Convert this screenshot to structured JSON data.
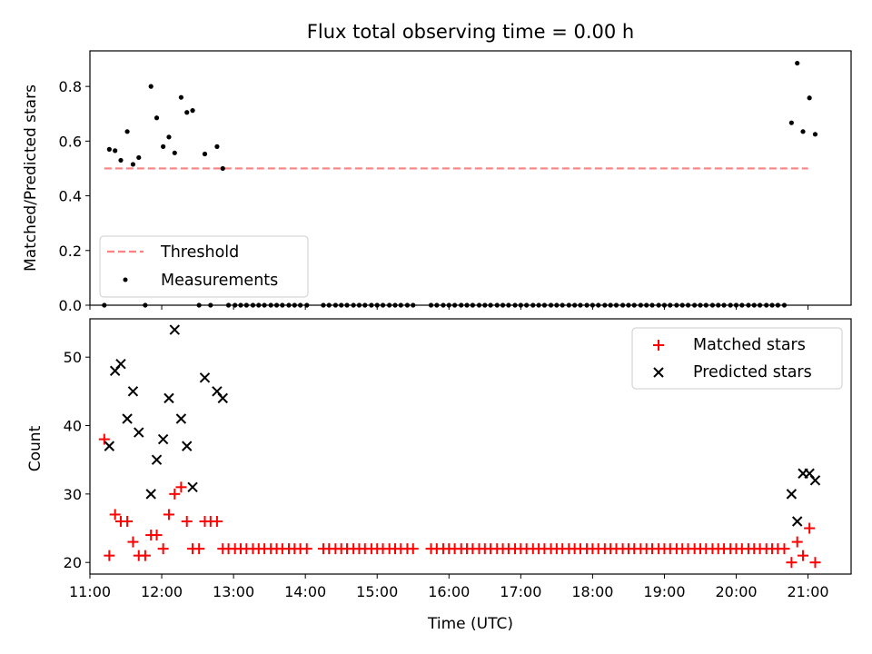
{
  "chart_data": [
    {
      "type": "scatter",
      "title": "Flux total observing time = 0.00 h",
      "xlabel": "",
      "ylabel": "Matched/Predicted stars",
      "xlim": [
        11.0,
        21.6
      ],
      "ylim": [
        0.0,
        0.93
      ],
      "yticks": [
        "0.0",
        "0.2",
        "0.4",
        "0.6",
        "0.8"
      ],
      "threshold": {
        "name": "Threshold",
        "value": 0.5,
        "x_range": [
          11.2,
          21.0
        ],
        "color": "#ff8080"
      },
      "legend": {
        "position": "lower-left",
        "entries": [
          "Threshold",
          "Measurements"
        ]
      },
      "series": [
        {
          "name": "Measurements",
          "color": "#000000",
          "points": [
            [
              11.2,
              0.0
            ],
            [
              11.27,
              0.57
            ],
            [
              11.35,
              0.565
            ],
            [
              11.43,
              0.53
            ],
            [
              11.52,
              0.635
            ],
            [
              11.6,
              0.515
            ],
            [
              11.68,
              0.54
            ],
            [
              11.77,
              0.0
            ],
            [
              11.85,
              0.8
            ],
            [
              11.93,
              0.685
            ],
            [
              12.02,
              0.58
            ],
            [
              12.1,
              0.615
            ],
            [
              12.18,
              0.557
            ],
            [
              12.27,
              0.76
            ],
            [
              12.35,
              0.705
            ],
            [
              12.43,
              0.712
            ],
            [
              12.52,
              0.0
            ],
            [
              12.6,
              0.553
            ],
            [
              12.68,
              0.0
            ],
            [
              12.77,
              0.58
            ],
            [
              12.85,
              0.5
            ],
            [
              12.93,
              0.0
            ],
            [
              13.02,
              0.0
            ],
            [
              13.1,
              0.0
            ],
            [
              13.18,
              0.0
            ],
            [
              13.27,
              0.0
            ],
            [
              13.35,
              0.0
            ],
            [
              13.43,
              0.0
            ],
            [
              13.52,
              0.0
            ],
            [
              13.6,
              0.0
            ],
            [
              13.68,
              0.0
            ],
            [
              13.77,
              0.0
            ],
            [
              13.85,
              0.0
            ],
            [
              13.93,
              0.0
            ],
            [
              14.02,
              0.0
            ],
            [
              14.25,
              0.0
            ],
            [
              14.33,
              0.0
            ],
            [
              14.42,
              0.0
            ],
            [
              14.5,
              0.0
            ],
            [
              14.58,
              0.0
            ],
            [
              14.67,
              0.0
            ],
            [
              14.75,
              0.0
            ],
            [
              14.83,
              0.0
            ],
            [
              14.92,
              0.0
            ],
            [
              15.0,
              0.0
            ],
            [
              15.08,
              0.0
            ],
            [
              15.17,
              0.0
            ],
            [
              15.25,
              0.0
            ],
            [
              15.33,
              0.0
            ],
            [
              15.42,
              0.0
            ],
            [
              15.5,
              0.0
            ],
            [
              15.75,
              0.0
            ],
            [
              15.83,
              0.0
            ],
            [
              15.92,
              0.0
            ],
            [
              16.0,
              0.0
            ],
            [
              16.08,
              0.0
            ],
            [
              16.17,
              0.0
            ],
            [
              16.25,
              0.0
            ],
            [
              16.33,
              0.0
            ],
            [
              16.42,
              0.0
            ],
            [
              16.5,
              0.0
            ],
            [
              16.58,
              0.0
            ],
            [
              16.67,
              0.0
            ],
            [
              16.75,
              0.0
            ],
            [
              16.83,
              0.0
            ],
            [
              16.92,
              0.0
            ],
            [
              17.0,
              0.0
            ],
            [
              17.08,
              0.0
            ],
            [
              17.17,
              0.0
            ],
            [
              17.25,
              0.0
            ],
            [
              17.33,
              0.0
            ],
            [
              17.42,
              0.0
            ],
            [
              17.5,
              0.0
            ],
            [
              17.58,
              0.0
            ],
            [
              17.67,
              0.0
            ],
            [
              17.75,
              0.0
            ],
            [
              17.83,
              0.0
            ],
            [
              17.92,
              0.0
            ],
            [
              18.0,
              0.0
            ],
            [
              18.08,
              0.0
            ],
            [
              18.17,
              0.0
            ],
            [
              18.25,
              0.0
            ],
            [
              18.33,
              0.0
            ],
            [
              18.42,
              0.0
            ],
            [
              18.5,
              0.0
            ],
            [
              18.58,
              0.0
            ],
            [
              18.67,
              0.0
            ],
            [
              18.75,
              0.0
            ],
            [
              18.83,
              0.0
            ],
            [
              18.92,
              0.0
            ],
            [
              19.0,
              0.0
            ],
            [
              19.08,
              0.0
            ],
            [
              19.17,
              0.0
            ],
            [
              19.25,
              0.0
            ],
            [
              19.33,
              0.0
            ],
            [
              19.42,
              0.0
            ],
            [
              19.5,
              0.0
            ],
            [
              19.58,
              0.0
            ],
            [
              19.67,
              0.0
            ],
            [
              19.75,
              0.0
            ],
            [
              19.83,
              0.0
            ],
            [
              19.92,
              0.0
            ],
            [
              20.0,
              0.0
            ],
            [
              20.08,
              0.0
            ],
            [
              20.17,
              0.0
            ],
            [
              20.25,
              0.0
            ],
            [
              20.33,
              0.0
            ],
            [
              20.42,
              0.0
            ],
            [
              20.5,
              0.0
            ],
            [
              20.58,
              0.0
            ],
            [
              20.67,
              0.0
            ],
            [
              20.77,
              0.667
            ],
            [
              20.85,
              0.885
            ],
            [
              20.93,
              0.635
            ],
            [
              21.02,
              0.758
            ],
            [
              21.1,
              0.625
            ]
          ]
        }
      ]
    },
    {
      "type": "scatter",
      "title": "",
      "xlabel": "Time (UTC)",
      "ylabel": "Count",
      "xlim": [
        11.0,
        21.6
      ],
      "ylim": [
        18.3,
        55.6
      ],
      "yticks": [
        "20",
        "30",
        "40",
        "50"
      ],
      "xticks": [
        "11:00",
        "12:00",
        "13:00",
        "14:00",
        "15:00",
        "16:00",
        "17:00",
        "18:00",
        "19:00",
        "20:00",
        "21:00"
      ],
      "legend": {
        "position": "top-right",
        "entries": [
          "Matched stars",
          "Predicted stars"
        ]
      },
      "series": [
        {
          "name": "Matched stars",
          "marker": "plus",
          "color": "#ff0000",
          "points": [
            [
              11.2,
              38
            ],
            [
              11.27,
              21
            ],
            [
              11.35,
              27
            ],
            [
              11.43,
              26
            ],
            [
              11.52,
              26
            ],
            [
              11.6,
              23
            ],
            [
              11.68,
              21
            ],
            [
              11.77,
              21
            ],
            [
              11.85,
              24
            ],
            [
              11.93,
              24
            ],
            [
              12.02,
              22
            ],
            [
              12.1,
              27
            ],
            [
              12.18,
              30
            ],
            [
              12.27,
              31
            ],
            [
              12.35,
              26
            ],
            [
              12.43,
              22
            ],
            [
              12.52,
              22
            ],
            [
              12.6,
              26
            ],
            [
              12.68,
              26
            ],
            [
              12.77,
              26
            ],
            [
              12.85,
              22
            ],
            [
              12.93,
              22
            ],
            [
              13.02,
              22
            ],
            [
              13.1,
              22
            ],
            [
              13.18,
              22
            ],
            [
              13.27,
              22
            ],
            [
              13.35,
              22
            ],
            [
              13.43,
              22
            ],
            [
              13.52,
              22
            ],
            [
              13.6,
              22
            ],
            [
              13.68,
              22
            ],
            [
              13.77,
              22
            ],
            [
              13.85,
              22
            ],
            [
              13.93,
              22
            ],
            [
              14.02,
              22
            ],
            [
              14.25,
              22
            ],
            [
              14.33,
              22
            ],
            [
              14.42,
              22
            ],
            [
              14.5,
              22
            ],
            [
              14.58,
              22
            ],
            [
              14.67,
              22
            ],
            [
              14.75,
              22
            ],
            [
              14.83,
              22
            ],
            [
              14.92,
              22
            ],
            [
              15.0,
              22
            ],
            [
              15.08,
              22
            ],
            [
              15.17,
              22
            ],
            [
              15.25,
              22
            ],
            [
              15.33,
              22
            ],
            [
              15.42,
              22
            ],
            [
              15.5,
              22
            ],
            [
              15.75,
              22
            ],
            [
              15.83,
              22
            ],
            [
              15.92,
              22
            ],
            [
              16.0,
              22
            ],
            [
              16.08,
              22
            ],
            [
              16.17,
              22
            ],
            [
              16.25,
              22
            ],
            [
              16.33,
              22
            ],
            [
              16.42,
              22
            ],
            [
              16.5,
              22
            ],
            [
              16.58,
              22
            ],
            [
              16.67,
              22
            ],
            [
              16.75,
              22
            ],
            [
              16.83,
              22
            ],
            [
              16.92,
              22
            ],
            [
              17.0,
              22
            ],
            [
              17.08,
              22
            ],
            [
              17.17,
              22
            ],
            [
              17.25,
              22
            ],
            [
              17.33,
              22
            ],
            [
              17.42,
              22
            ],
            [
              17.5,
              22
            ],
            [
              17.58,
              22
            ],
            [
              17.67,
              22
            ],
            [
              17.75,
              22
            ],
            [
              17.83,
              22
            ],
            [
              17.92,
              22
            ],
            [
              18.0,
              22
            ],
            [
              18.08,
              22
            ],
            [
              18.17,
              22
            ],
            [
              18.25,
              22
            ],
            [
              18.33,
              22
            ],
            [
              18.42,
              22
            ],
            [
              18.5,
              22
            ],
            [
              18.58,
              22
            ],
            [
              18.67,
              22
            ],
            [
              18.75,
              22
            ],
            [
              18.83,
              22
            ],
            [
              18.92,
              22
            ],
            [
              19.0,
              22
            ],
            [
              19.08,
              22
            ],
            [
              19.17,
              22
            ],
            [
              19.25,
              22
            ],
            [
              19.33,
              22
            ],
            [
              19.42,
              22
            ],
            [
              19.5,
              22
            ],
            [
              19.58,
              22
            ],
            [
              19.67,
              22
            ],
            [
              19.75,
              22
            ],
            [
              19.83,
              22
            ],
            [
              19.92,
              22
            ],
            [
              20.0,
              22
            ],
            [
              20.08,
              22
            ],
            [
              20.17,
              22
            ],
            [
              20.25,
              22
            ],
            [
              20.33,
              22
            ],
            [
              20.42,
              22
            ],
            [
              20.5,
              22
            ],
            [
              20.58,
              22
            ],
            [
              20.67,
              22
            ],
            [
              20.77,
              20
            ],
            [
              20.85,
              23
            ],
            [
              20.93,
              21
            ],
            [
              21.02,
              25
            ],
            [
              21.1,
              20
            ]
          ]
        },
        {
          "name": "Predicted stars",
          "marker": "x",
          "color": "#000000",
          "points": [
            [
              11.27,
              37
            ],
            [
              11.35,
              48
            ],
            [
              11.43,
              49
            ],
            [
              11.52,
              41
            ],
            [
              11.6,
              45
            ],
            [
              11.68,
              39
            ],
            [
              11.85,
              30
            ],
            [
              11.93,
              35
            ],
            [
              12.02,
              38
            ],
            [
              12.1,
              44
            ],
            [
              12.18,
              54
            ],
            [
              12.27,
              41
            ],
            [
              12.35,
              37
            ],
            [
              12.43,
              31
            ],
            [
              12.6,
              47
            ],
            [
              12.77,
              45
            ],
            [
              12.85,
              44
            ],
            [
              20.77,
              30
            ],
            [
              20.85,
              26
            ],
            [
              20.93,
              33
            ],
            [
              21.02,
              33
            ],
            [
              21.1,
              32
            ]
          ]
        }
      ]
    }
  ]
}
